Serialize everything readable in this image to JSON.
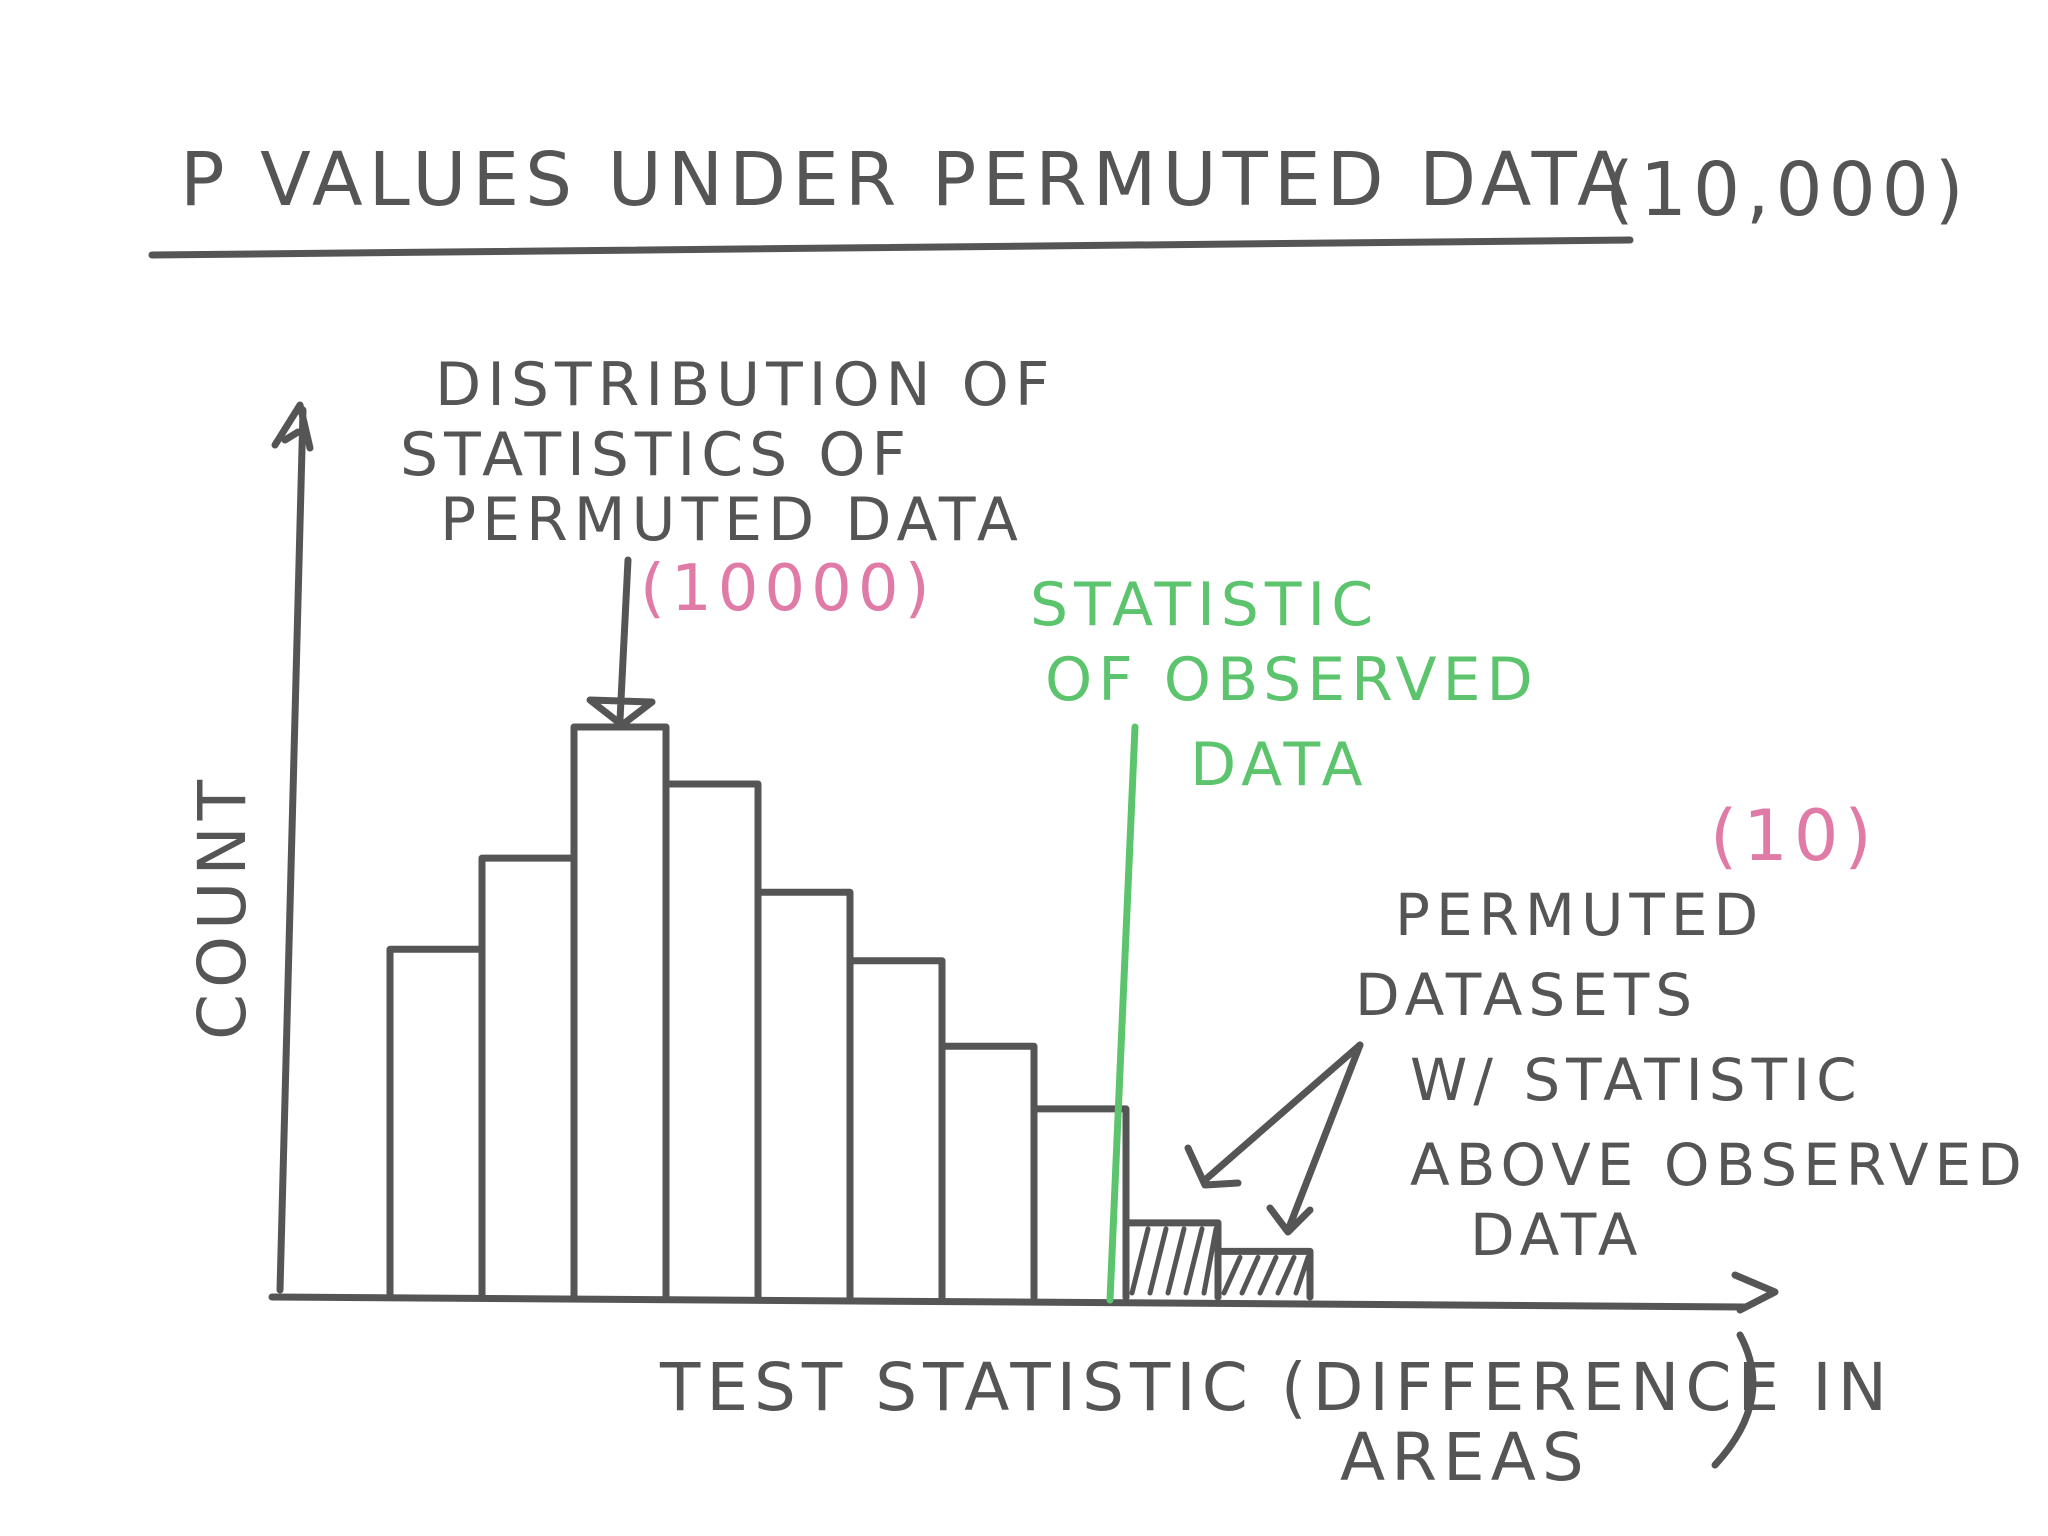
{
  "title": "P VALUES UNDER PERMUTED DATA",
  "title_count": "(10,000)",
  "y_axis_label": "COUNT",
  "x_axis_label_line1": "TEST STATISTIC (DIFFERENCE IN",
  "x_axis_label_line2": "AREAS",
  "x_axis_label_close": ")",
  "annotation_distribution": {
    "line1": "DISTRIBUTION OF",
    "line2": "STATISTICS OF",
    "line3": "PERMUTED DATA",
    "count": "(10000)"
  },
  "annotation_observed": {
    "line1": "STATISTIC",
    "line2": "OF OBSERVED",
    "line3": "DATA"
  },
  "annotation_above": {
    "count": "(10)",
    "line1": "PERMUTED",
    "line2": "DATASETS",
    "line3": "W/ STATISTIC",
    "line4": "ABOVE OBSERVED",
    "line5": "DATA"
  },
  "colors": {
    "ink": "#555555",
    "observed": "#5cc46d",
    "count_annotation": "#e07aa6"
  },
  "histogram": {
    "relative_heights": [
      0.61,
      0.77,
      1.0,
      0.9,
      0.71,
      0.59,
      0.44,
      0.33,
      0.13,
      0.08
    ],
    "hatched_bins": [
      8,
      9
    ]
  }
}
